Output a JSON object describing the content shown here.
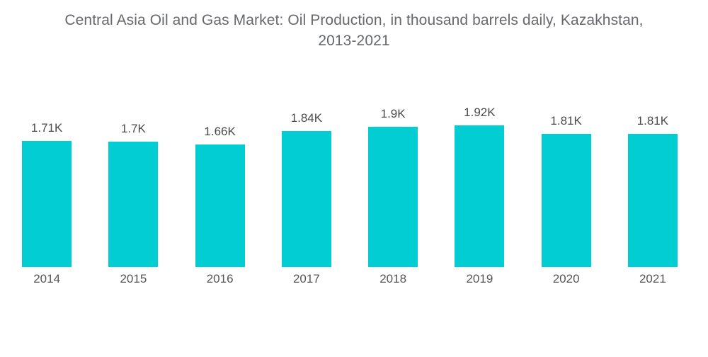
{
  "title": {
    "line1": "Central Asia Oil and Gas Market: Oil Production, in thousand barrels daily, Kazakhstan,",
    "line2": "2013-2021"
  },
  "chart_data": {
    "type": "bar",
    "title": "Central Asia Oil and Gas Market: Oil Production, in thousand barrels daily, Kazakhstan, 2013-2021",
    "categories": [
      "2014",
      "2015",
      "2016",
      "2017",
      "2018",
      "2019",
      "2020",
      "2021"
    ],
    "values": [
      1710,
      1700,
      1660,
      1840,
      1900,
      1920,
      1810,
      1810
    ],
    "value_labels": [
      "1.71K",
      "1.7K",
      "1.66K",
      "1.84K",
      "1.9K",
      "1.92K",
      "1.81K",
      "1.81K"
    ],
    "unit": "thousand barrels daily",
    "xlabel": "",
    "ylabel": "",
    "ylim": [
      0,
      1920
    ],
    "grid": false,
    "legend": "none",
    "colors": {
      "bar": "#02CDD3",
      "title_text": "#66686c",
      "value_label_text": "#4b4b4b",
      "axis_tick_text": "#555555",
      "background": "#ffffff"
    }
  }
}
